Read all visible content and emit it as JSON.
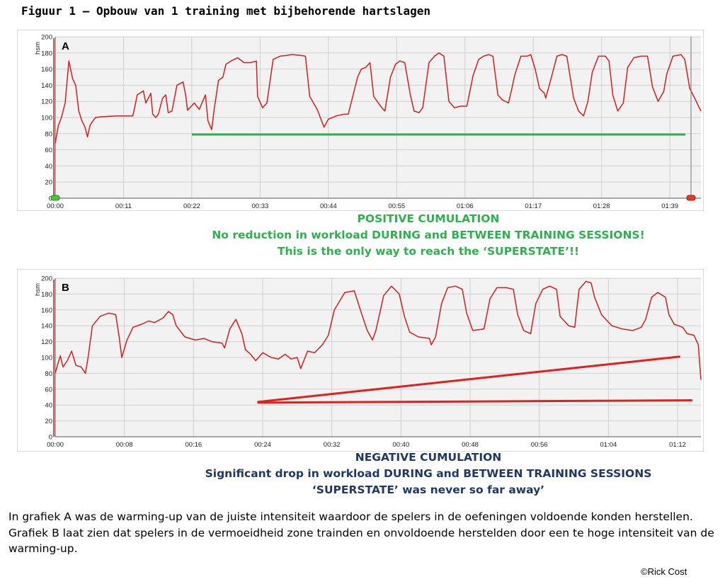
{
  "title": "Figuur 1 – Opbouw van 1 training met bijbehorende hartslagen",
  "colors": {
    "trace": "#d41f1f",
    "positive": "#2bb24c",
    "negative_text": "#1f3864",
    "negative_line": "#e0201e",
    "grid": "#cfcfcf",
    "plot_bg": "#f2f2f2"
  },
  "annotation_a": {
    "line1": "POSITIVE CUMULATION",
    "line2": "No reduction in workload DURING and BETWEEN TRAINING SESSIONS!",
    "line3": "This is the only way to reach the ‘SUPERSTATE’!!"
  },
  "annotation_b": {
    "line1": "NEGATIVE CUMULATION",
    "line2": "Significant drop in workload DURING and BETWEEN TRAINING SESSIONS",
    "line3": "‘SUPERSTATE’ was never so far away’"
  },
  "description": {
    "p1": "In grafiek A was de warming-up van de juiste intensiteit waardoor de spelers in de oefeningen voldoende konden herstellen.",
    "p2": "Grafiek B laat zien dat spelers in de vermoeidheid zone trainden en onvoldoende herstelden door een te hoge intensiteit van de warming-up."
  },
  "copyright": "©Rick Cost",
  "chart_data": [
    {
      "type": "line",
      "panel": "A",
      "ylabel": "hsm",
      "ylim": [
        0,
        200
      ],
      "yticks": [
        0,
        20,
        40,
        60,
        80,
        100,
        120,
        140,
        160,
        180,
        200
      ],
      "xlim_min": [
        0,
        104
      ],
      "xticks_min": [
        0,
        11,
        22,
        33,
        44,
        55,
        66,
        77,
        88,
        99
      ],
      "xtick_labels": [
        "00:00",
        "00:11",
        "00:22",
        "00:33",
        "00:44",
        "00:55",
        "01:06",
        "01:17",
        "01:28",
        "01:39"
      ],
      "series": [
        {
          "name": "heart rate",
          "points": [
            [
              0,
              68
            ],
            [
              0.5,
              90
            ],
            [
              1,
              100
            ],
            [
              1.6,
              118
            ],
            [
              2.2,
              170
            ],
            [
              2.8,
              148
            ],
            [
              3.3,
              140
            ],
            [
              3.8,
              108
            ],
            [
              4.3,
              96
            ],
            [
              4.8,
              88
            ],
            [
              5.2,
              76
            ],
            [
              5.6,
              90
            ],
            [
              6,
              95
            ],
            [
              6.5,
              100
            ],
            [
              7.5,
              101
            ],
            [
              10,
              102
            ],
            [
              12.5,
              102
            ],
            [
              12.8,
              112
            ],
            [
              13.2,
              128
            ],
            [
              14.2,
              133
            ],
            [
              14.6,
              118
            ],
            [
              15.4,
              130
            ],
            [
              15.7,
              104
            ],
            [
              16.2,
              100
            ],
            [
              16.6,
              104
            ],
            [
              17.3,
              124
            ],
            [
              17.8,
              128
            ],
            [
              18.2,
              106
            ],
            [
              18.8,
              108
            ],
            [
              19.6,
              140
            ],
            [
              20.6,
              144
            ],
            [
              21,
              128
            ],
            [
              21.3,
              109
            ],
            [
              21.8,
              113
            ],
            [
              22.4,
              118
            ],
            [
              23.2,
              110
            ],
            [
              24.2,
              128
            ],
            [
              24.6,
              96
            ],
            [
              25.2,
              85
            ],
            [
              25.6,
              110
            ],
            [
              26.3,
              146
            ],
            [
              27,
              150
            ],
            [
              27.5,
              166
            ],
            [
              28.3,
              170
            ],
            [
              29.4,
              174
            ],
            [
              30.4,
              168
            ],
            [
              31.5,
              168
            ],
            [
              32.4,
              170
            ],
            [
              32.6,
              126
            ],
            [
              33.4,
              112
            ],
            [
              34.1,
              118
            ],
            [
              35.1,
              172
            ],
            [
              36.2,
              176
            ],
            [
              37.3,
              177
            ],
            [
              38.1,
              178
            ],
            [
              39.5,
              177
            ],
            [
              40.3,
              176
            ],
            [
              41,
              126
            ],
            [
              42.2,
              110
            ],
            [
              42.9,
              96
            ],
            [
              43.3,
              88
            ],
            [
              44,
              98
            ],
            [
              45.3,
              102
            ],
            [
              46.5,
              104
            ],
            [
              47.2,
              104
            ],
            [
              48.7,
              150
            ],
            [
              49.3,
              160
            ],
            [
              50,
              162
            ],
            [
              50.7,
              168
            ],
            [
              51.3,
              126
            ],
            [
              52.6,
              112
            ],
            [
              53.1,
              108
            ],
            [
              54,
              150
            ],
            [
              54.8,
              166
            ],
            [
              55.5,
              170
            ],
            [
              56.3,
              168
            ],
            [
              57.2,
              128
            ],
            [
              57.8,
              108
            ],
            [
              58.6,
              106
            ],
            [
              59.2,
              112
            ],
            [
              60.2,
              168
            ],
            [
              61.1,
              176
            ],
            [
              61.8,
              180
            ],
            [
              62.6,
              176
            ],
            [
              63.4,
              120
            ],
            [
              64.3,
              112
            ],
            [
              65.3,
              114
            ],
            [
              66.3,
              114
            ],
            [
              67.3,
              152
            ],
            [
              68.2,
              172
            ],
            [
              69,
              176
            ],
            [
              69.8,
              178
            ],
            [
              70.5,
              176
            ],
            [
              71.3,
              128
            ],
            [
              72,
              122
            ],
            [
              73,
              118
            ],
            [
              73.5,
              134
            ],
            [
              74,
              152
            ],
            [
              75,
              176
            ],
            [
              76,
              176
            ],
            [
              76.6,
              178
            ],
            [
              77.3,
              160
            ],
            [
              78,
              136
            ],
            [
              78.8,
              130
            ],
            [
              79,
              124
            ],
            [
              80,
              152
            ],
            [
              80.8,
              176
            ],
            [
              81.6,
              178
            ],
            [
              82.4,
              176
            ],
            [
              83.5,
              124
            ],
            [
              84.3,
              108
            ],
            [
              85.1,
              102
            ],
            [
              85.8,
              120
            ],
            [
              86.5,
              156
            ],
            [
              87.5,
              176
            ],
            [
              88.6,
              176
            ],
            [
              89.2,
              170
            ],
            [
              89.8,
              128
            ],
            [
              90.6,
              108
            ],
            [
              91.5,
              118
            ],
            [
              92.2,
              162
            ],
            [
              93.2,
              174
            ],
            [
              94.3,
              176
            ],
            [
              95.4,
              176
            ],
            [
              96.2,
              138
            ],
            [
              97.1,
              120
            ],
            [
              98,
              132
            ],
            [
              98.5,
              154
            ],
            [
              99.5,
              176
            ],
            [
              100.8,
              178
            ],
            [
              101.4,
              172
            ],
            [
              102.2,
              136
            ],
            [
              103,
              124
            ],
            [
              103.5,
              116
            ],
            [
              104,
              108
            ]
          ]
        }
      ],
      "reference_line": {
        "color": "green",
        "x_from_min": 22,
        "x_to_min": 101.5,
        "y": 79
      }
    },
    {
      "type": "line",
      "panel": "B",
      "ylabel": "hsm",
      "ylim": [
        0,
        200
      ],
      "yticks": [
        0,
        20,
        40,
        60,
        80,
        100,
        120,
        140,
        160,
        180,
        200
      ],
      "xlim_min": [
        0,
        74.7
      ],
      "xticks_min": [
        0,
        8,
        16,
        24,
        32,
        40,
        48,
        56,
        64,
        72
      ],
      "xtick_labels": [
        "00:00",
        "00:08",
        "00:16",
        "00:24",
        "00:32",
        "00:40",
        "00:48",
        "00:56",
        "01:04",
        "01:12"
      ],
      "series": [
        {
          "name": "heart rate",
          "points": [
            [
              0,
              80
            ],
            [
              0.3,
              92
            ],
            [
              0.6,
              102
            ],
            [
              0.9,
              88
            ],
            [
              1.4,
              96
            ],
            [
              1.9,
              108
            ],
            [
              2.4,
              90
            ],
            [
              3,
              88
            ],
            [
              3.5,
              80
            ],
            [
              3.8,
              100
            ],
            [
              4.3,
              140
            ],
            [
              5.2,
              152
            ],
            [
              6.2,
              156
            ],
            [
              7,
              154
            ],
            [
              7.4,
              126
            ],
            [
              7.7,
              100
            ],
            [
              8.3,
              122
            ],
            [
              9,
              138
            ],
            [
              10,
              142
            ],
            [
              10.8,
              146
            ],
            [
              11.5,
              144
            ],
            [
              12.5,
              150
            ],
            [
              13.1,
              158
            ],
            [
              13.6,
              154
            ],
            [
              14,
              140
            ],
            [
              15,
              126
            ],
            [
              16.2,
              122
            ],
            [
              17.2,
              124
            ],
            [
              18.1,
              120
            ],
            [
              19.3,
              118
            ],
            [
              19.6,
              112
            ],
            [
              20.2,
              136
            ],
            [
              20.9,
              148
            ],
            [
              21.6,
              130
            ],
            [
              22,
              110
            ],
            [
              22.6,
              104
            ],
            [
              23.2,
              96
            ],
            [
              24,
              106
            ],
            [
              25,
              100
            ],
            [
              25.8,
              98
            ],
            [
              26.6,
              104
            ],
            [
              27.3,
              98
            ],
            [
              28,
              100
            ],
            [
              28.4,
              86
            ],
            [
              29.2,
              108
            ],
            [
              30,
              106
            ],
            [
              30.9,
              116
            ],
            [
              31.6,
              128
            ],
            [
              32.3,
              160
            ],
            [
              33.5,
              182
            ],
            [
              34.6,
              184
            ],
            [
              35.3,
              160
            ],
            [
              36.1,
              134
            ],
            [
              36.7,
              122
            ],
            [
              37.1,
              134
            ],
            [
              38,
              178
            ],
            [
              38.9,
              190
            ],
            [
              39.8,
              180
            ],
            [
              40.4,
              152
            ],
            [
              41,
              132
            ],
            [
              42,
              126
            ],
            [
              43.3,
              124
            ],
            [
              43.5,
              116
            ],
            [
              44,
              126
            ],
            [
              44.7,
              168
            ],
            [
              45.4,
              188
            ],
            [
              46.3,
              190
            ],
            [
              47.1,
              186
            ],
            [
              47.6,
              156
            ],
            [
              48.3,
              134
            ],
            [
              49.6,
              136
            ],
            [
              50.3,
              174
            ],
            [
              51.1,
              188
            ],
            [
              52.2,
              188
            ],
            [
              53,
              186
            ],
            [
              53.5,
              154
            ],
            [
              54.2,
              134
            ],
            [
              55,
              130
            ],
            [
              55.6,
              168
            ],
            [
              56.4,
              186
            ],
            [
              57.2,
              190
            ],
            [
              58,
              186
            ],
            [
              58.4,
              152
            ],
            [
              59.4,
              140
            ],
            [
              60.1,
              138
            ],
            [
              60.6,
              186
            ],
            [
              61.4,
              196
            ],
            [
              62,
              194
            ],
            [
              62.4,
              176
            ],
            [
              63.2,
              154
            ],
            [
              64.4,
              140
            ],
            [
              65.6,
              136
            ],
            [
              66.8,
              134
            ],
            [
              67.8,
              138
            ],
            [
              68.3,
              148
            ],
            [
              69,
              176
            ],
            [
              69.7,
              182
            ],
            [
              70.6,
              176
            ],
            [
              71,
              154
            ],
            [
              71.6,
              142
            ],
            [
              72.6,
              138
            ],
            [
              73.1,
              130
            ],
            [
              73.9,
              128
            ],
            [
              74.4,
              116
            ],
            [
              74.7,
              72
            ]
          ]
        }
      ],
      "trend_lines": [
        {
          "color": "red",
          "x_from_min": 23.5,
          "y_from": 44,
          "x_to_min": 72.2,
          "y_to": 101
        },
        {
          "color": "red",
          "x_from_min": 23.5,
          "y_from": 43,
          "x_to_min": 73.6,
          "y_to": 46
        }
      ]
    }
  ]
}
